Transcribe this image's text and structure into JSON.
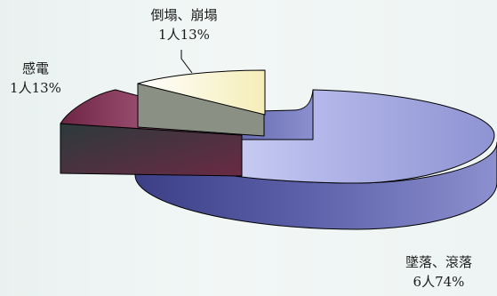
{
  "chart_data": {
    "type": "pie",
    "categories": [
      "墜落、滾落",
      "感電",
      "倒塌、崩塌"
    ],
    "values": [
      6,
      1,
      1
    ],
    "percent_labels": [
      "74%",
      "13%",
      "13%"
    ],
    "labels": [
      {
        "name": "墜落、滾落",
        "count": "6人",
        "pct": "74%"
      },
      {
        "name": "感電",
        "count": "1人",
        "pct": "13%"
      },
      {
        "name": "倒塌、崩塌",
        "count": "1人",
        "pct": "13%"
      }
    ],
    "colors": [
      "#9c9fd8",
      "#7a2f4f",
      "#fbf6d2"
    ],
    "exploded": true,
    "three_d": true
  }
}
